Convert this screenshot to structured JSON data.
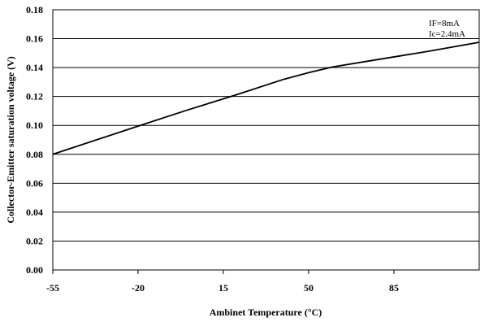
{
  "chart_data": {
    "type": "line",
    "title": "",
    "xlabel": "Ambinet Temperature (°C)",
    "ylabel": "Collector-Emitter saturation voltage (V)",
    "xlim": [
      -55,
      120
    ],
    "ylim": [
      0,
      0.18
    ],
    "x_ticks": [
      -55,
      -20,
      15,
      50,
      85
    ],
    "x_tick_labels": [
      "-55",
      "-20",
      "15",
      "50",
      "85"
    ],
    "y_ticks": [
      0,
      0.02,
      0.04,
      0.06,
      0.08,
      0.1,
      0.12,
      0.14,
      0.16,
      0.18
    ],
    "y_tick_labels": [
      "0.00",
      "0.02",
      "0.04",
      "0.06",
      "0.08",
      "0.10",
      "0.12",
      "0.14",
      "0.16",
      "0.18"
    ],
    "grid": "horizontal",
    "legend": "none",
    "annotations": [
      "IF=8mA",
      "Ic=2.4mA"
    ],
    "series": [
      {
        "x": [
          -55,
          -20,
          0,
          20,
          40,
          50,
          60,
          80,
          100,
          120
        ],
        "y": [
          0.08,
          0.0995,
          0.1105,
          0.121,
          0.132,
          0.1365,
          0.1405,
          0.146,
          0.1515,
          0.1575
        ]
      }
    ]
  }
}
